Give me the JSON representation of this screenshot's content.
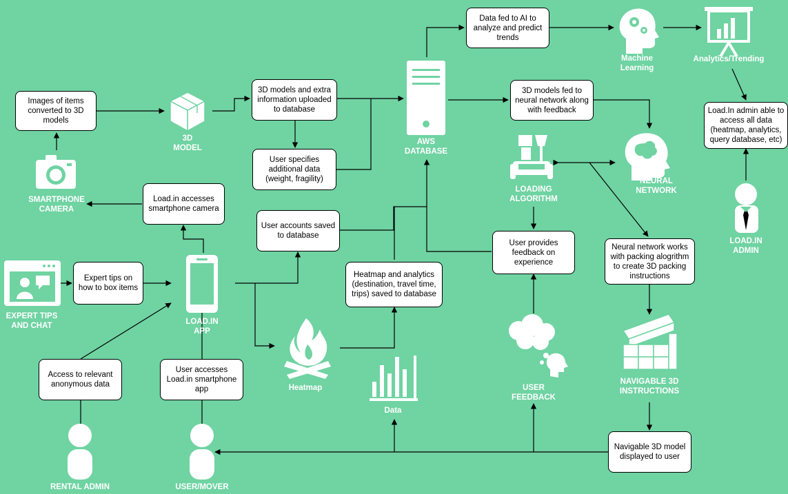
{
  "boxes": {
    "images_to_3d": "Images of items converted to 3D models",
    "info_uploaded": "3D models and extra information uploaded to database",
    "user_specifies": "User specifies additional data (weight, fragility)",
    "ai_predict": "Data fed to AI to analyze and predict trends",
    "fed_to_nn": "3D models fed to neural network along with feedback",
    "admin_access": "Load.In admin able to access all data (heatmap, analytics, query database, etc)",
    "camera_access": "Load.in accesses smartphone camera",
    "accounts_saved": "User accounts saved to database",
    "expert_tips_box": "Expert tips on how to box items",
    "heatmap_saved": "Heatmap and analytics (destination, travel time, trips) saved to database",
    "feedback_experience": "User provides feedback on experience",
    "nn_packing": "Neural network works with packing alogrithm to create 3D packing instructions",
    "relevant_data": "Access to relevant anonymous data",
    "user_accesses": "User accesses Load.in smartphone app",
    "model_displayed": "Navigable 3D model displayed to user"
  },
  "labels": {
    "model_3d": "3D\nMODEL",
    "aws": "AWS\nDATABASE",
    "machine_learning": "Machine\nLearning",
    "analytics": "Analytics/Trending",
    "loading_algorithm": "LOADING\nALGORITHM",
    "neural_network": "NEURAL\nNETWORK",
    "smartphone_camera": "SMARTPHONE\nCAMERA",
    "loadin_admin": "LOAD.IN\nADMIN",
    "expert_chat": "EXPERT TIPS\nAND CHAT",
    "loadin_app": "LOAD.IN\nAPP",
    "heatmap": "Heatmap",
    "data": "Data",
    "user_feedback": "USER\nFEEDBACK",
    "nav_instructions": "NAVIGABLE 3D\nINSTRUCTIONS",
    "rental_admin": "RENTAL ADMIN",
    "user_mover": "USER/MOVER"
  },
  "icons": {
    "smartphone_camera": "camera-icon",
    "model_3d": "cube-box-icon",
    "aws": "server-icon",
    "machine_learning": "head-gears-icon",
    "analytics": "presentation-chart-icon",
    "loading_algorithm": "furniture-lamp-icon",
    "neural_network": "brain-head-icon",
    "loadin_admin": "admin-person-icon",
    "expert_chat": "video-chat-icon",
    "loadin_app": "smartphone-icon",
    "heatmap": "flame-icon",
    "data": "bar-chart-icon",
    "user_feedback": "thought-cloud-icon",
    "nav_instructions": "stacked-boxes-icon",
    "rental_admin": "person-icon",
    "user_mover": "person-icon"
  },
  "colors": {
    "background": "#6fd3a2",
    "foreground": "#ffffff",
    "line": "#000000"
  }
}
